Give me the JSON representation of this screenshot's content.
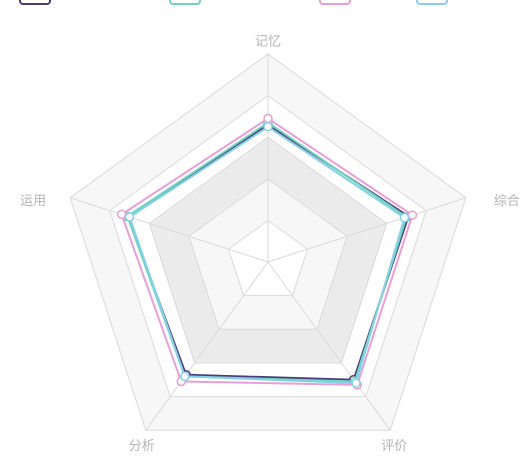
{
  "chart_data": {
    "type": "radar",
    "indicators": [
      "记忆",
      "综合",
      "评价",
      "分析",
      "运用"
    ],
    "max": 100,
    "levels": 5,
    "split_area_colors": [
      "#ffffff",
      "#f7f7f7",
      "#ececec"
    ],
    "series": [
      {
        "color": "#4b3c78",
        "values": [
          66,
          71,
          70,
          67,
          71
        ]
      },
      {
        "color": "#6ed3c1",
        "values": [
          67,
          70,
          71,
          68,
          71
        ]
      },
      {
        "color": "#e7a0d6",
        "values": [
          69,
          73,
          73,
          71,
          74
        ]
      },
      {
        "color": "#87d0e6",
        "values": [
          65,
          69,
          72,
          68,
          70
        ]
      }
    ]
  }
}
